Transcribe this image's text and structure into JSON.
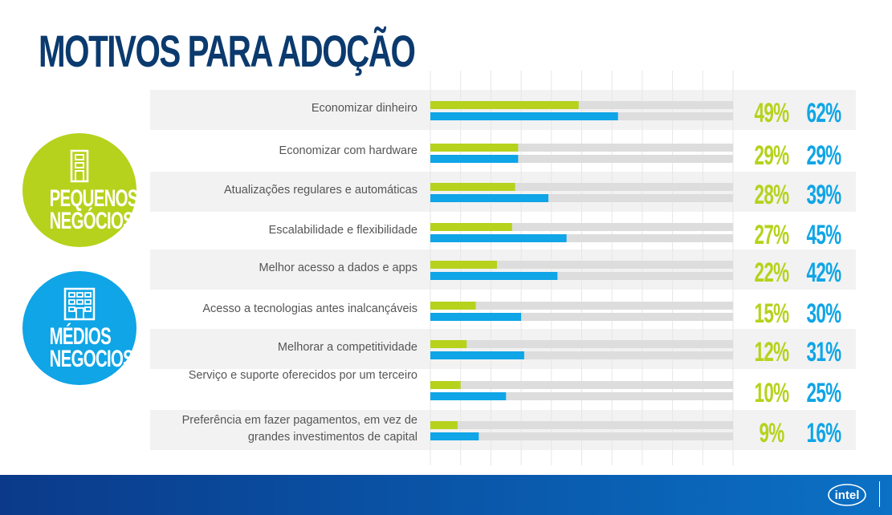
{
  "page": {
    "title": "MOTIVOS PARA ADOÇÃO"
  },
  "groups": {
    "small": {
      "label": "PEQUENOS NEGÓCIOS",
      "color": "#b6d21c",
      "icon": "small-building-icon"
    },
    "medium": {
      "label": "MÉDIOS NEGOCIOS",
      "color": "#0fa5e6",
      "icon": "office-building-icon"
    }
  },
  "chart_data": {
    "type": "bar",
    "orientation": "horizontal",
    "categories": [
      "Economizar dinheiro",
      "Economizar com hardware",
      "Atualizações regulares e automáticas",
      "Escalabilidade e flexibilidade",
      "Melhor acesso a dados e apps",
      "Acesso a tecnologias antes inalcançáveis",
      "Melhorar a competitividade",
      "Serviço e suporte oferecidos por um terceiro",
      "Preferência em fazer pagamentos, em vez de grandes investimentos de capital"
    ],
    "series": [
      {
        "name": "PEQUENOS NEGÓCIOS",
        "color": "#b6d21c",
        "values": [
          49,
          29,
          28,
          27,
          22,
          15,
          12,
          10,
          9
        ]
      },
      {
        "name": "MÉDIOS NEGOCIOS",
        "color": "#0fa5e6",
        "values": [
          62,
          29,
          39,
          45,
          42,
          30,
          31,
          25,
          16
        ]
      }
    ],
    "value_labels": {
      "small": [
        "49%",
        "29%",
        "28%",
        "27%",
        "22%",
        "15%",
        "12%",
        "10%",
        "9%"
      ],
      "medium": [
        "62%",
        "29%",
        "39%",
        "45%",
        "42%",
        "30%",
        "31%",
        "25%",
        "16%"
      ]
    },
    "xlim": [
      0,
      100
    ],
    "track_color": "#dddddd",
    "grid": true
  },
  "footer": {
    "logo_text": "intel",
    "bar_color": "#0b4c9c"
  }
}
